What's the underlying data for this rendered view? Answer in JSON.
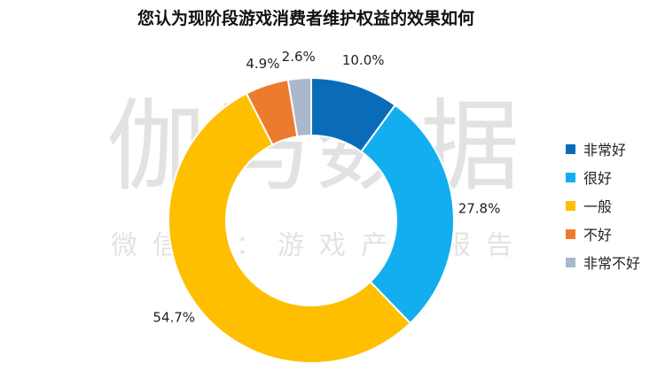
{
  "title": "您认为现阶段游戏消费者维护权益的效果如何",
  "watermark": {
    "main": "伽马数据",
    "sub": "微信号：游戏产业报告"
  },
  "chart_data": {
    "type": "pie",
    "donut": true,
    "title": "您认为现阶段游戏消费者维护权益的效果如何",
    "categories": [
      "非常好",
      "很好",
      "一般",
      "不好",
      "非常不好"
    ],
    "values": [
      10.0,
      27.8,
      54.7,
      4.9,
      2.6
    ],
    "labels": [
      "10.0%",
      "27.8%",
      "54.7%",
      "4.9%",
      "2.6%"
    ],
    "colors": [
      "#0A6CB8",
      "#12AEEF",
      "#FDBF00",
      "#EC7B2E",
      "#A9B8CB"
    ],
    "legend_position": "right"
  }
}
